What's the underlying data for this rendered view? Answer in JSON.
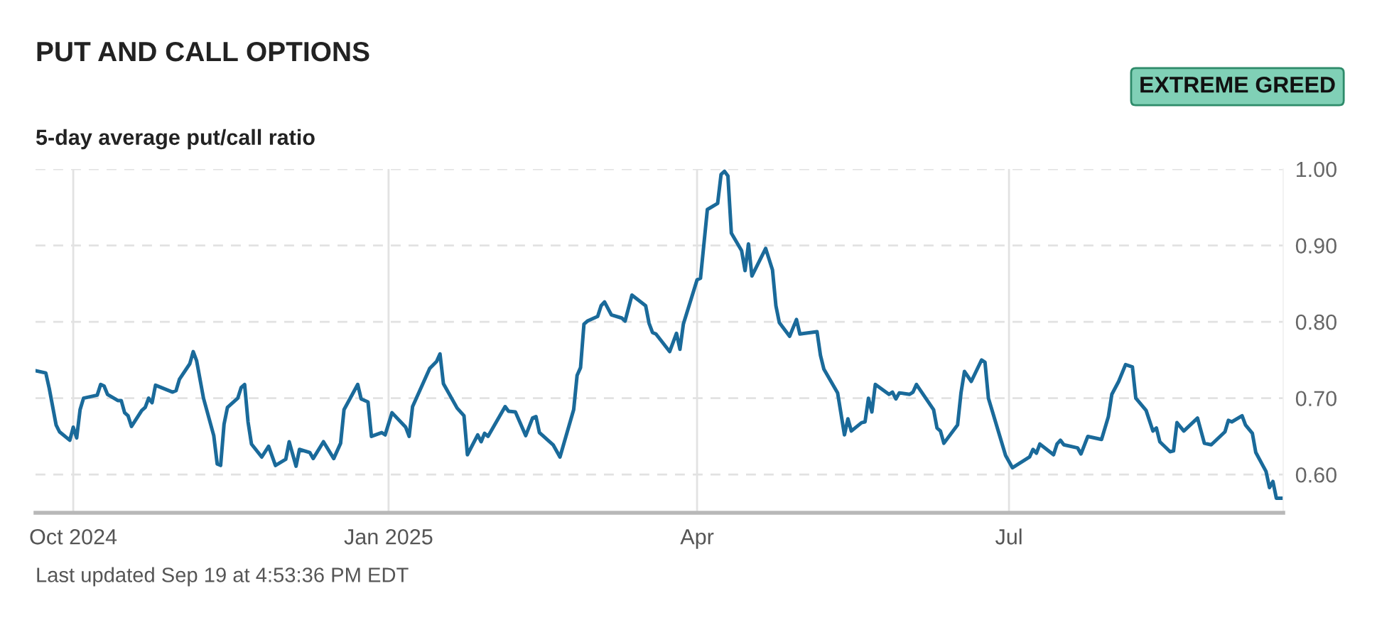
{
  "chart_data": {
    "type": "line",
    "title": "PUT AND CALL OPTIONS",
    "subtitle": "5-day average put/call ratio",
    "annotations": [
      "EXTREME GREED",
      "Last updated Sep 19 at 4:53:36 PM EDT"
    ],
    "xlim": [
      "2024-09-20",
      "2025-09-19"
    ],
    "xticks": [
      {
        "value": "2024-10-01",
        "label": "Oct 2024"
      },
      {
        "value": "2025-01-01",
        "label": "Jan 2025"
      },
      {
        "value": "2025-04-01",
        "label": "Apr"
      },
      {
        "value": "2025-07-01",
        "label": "Jul"
      }
    ],
    "ylim": [
      0.55,
      1.0
    ],
    "yticks": [
      {
        "value": 0.6,
        "label": "0.60"
      },
      {
        "value": 0.7,
        "label": "0.70"
      },
      {
        "value": 0.8,
        "label": "0.80"
      },
      {
        "value": 0.9,
        "label": "0.90"
      },
      {
        "value": 1.0,
        "label": "1.00"
      }
    ],
    "grid": true,
    "marker": "none",
    "line_style": "solid",
    "series": [
      {
        "color": "#1a6a9a",
        "x": [
          "2024-09-20",
          "2024-09-23",
          "2024-09-24",
          "2024-09-26",
          "2024-09-27",
          "2024-09-30",
          "2024-10-01",
          "2024-10-02",
          "2024-10-03",
          "2024-10-04",
          "2024-10-08",
          "2024-10-09",
          "2024-10-10",
          "2024-10-11",
          "2024-10-14",
          "2024-10-15",
          "2024-10-16",
          "2024-10-17",
          "2024-10-18",
          "2024-10-21",
          "2024-10-22",
          "2024-10-23",
          "2024-10-24",
          "2024-10-25",
          "2024-10-30",
          "2024-10-31",
          "2024-11-01",
          "2024-11-04",
          "2024-11-05",
          "2024-11-06",
          "2024-11-08",
          "2024-11-11",
          "2024-11-12",
          "2024-11-13",
          "2024-11-14",
          "2024-11-15",
          "2024-11-18",
          "2024-11-19",
          "2024-11-20",
          "2024-11-21",
          "2024-11-22",
          "2024-11-25",
          "2024-11-27",
          "2024-11-29",
          "2024-12-02",
          "2024-12-03",
          "2024-12-05",
          "2024-12-06",
          "2024-12-09",
          "2024-12-10",
          "2024-12-13",
          "2024-12-16",
          "2024-12-18",
          "2024-12-19",
          "2024-12-23",
          "2024-12-24",
          "2024-12-26",
          "2024-12-27",
          "2024-12-30",
          "2024-12-31",
          "2025-01-02",
          "2025-01-06",
          "2025-01-07",
          "2025-01-08",
          "2025-01-13",
          "2025-01-15",
          "2025-01-16",
          "2025-01-17",
          "2025-01-21",
          "2025-01-23",
          "2025-01-24",
          "2025-01-27",
          "2025-01-28",
          "2025-01-29",
          "2025-01-30",
          "2025-02-04",
          "2025-02-05",
          "2025-02-07",
          "2025-02-10",
          "2025-02-12",
          "2025-02-13",
          "2025-02-14",
          "2025-02-18",
          "2025-02-20",
          "2025-02-24",
          "2025-02-25",
          "2025-02-26",
          "2025-02-27",
          "2025-02-28",
          "2025-03-03",
          "2025-03-04",
          "2025-03-05",
          "2025-03-07",
          "2025-03-10",
          "2025-03-11",
          "2025-03-13",
          "2025-03-17",
          "2025-03-18",
          "2025-03-19",
          "2025-03-20",
          "2025-03-24",
          "2025-03-26",
          "2025-03-27",
          "2025-03-28",
          "2025-04-01",
          "2025-04-02",
          "2025-04-04",
          "2025-04-07",
          "2025-04-08",
          "2025-04-09",
          "2025-04-10",
          "2025-04-11",
          "2025-04-14",
          "2025-04-15",
          "2025-04-16",
          "2025-04-17",
          "2025-04-21",
          "2025-04-23",
          "2025-04-24",
          "2025-04-25",
          "2025-04-28",
          "2025-04-30",
          "2025-05-01",
          "2025-05-06",
          "2025-05-07",
          "2025-05-08",
          "2025-05-12",
          "2025-05-14",
          "2025-05-15",
          "2025-05-16",
          "2025-05-19",
          "2025-05-20",
          "2025-05-21",
          "2025-05-22",
          "2025-05-23",
          "2025-05-27",
          "2025-05-28",
          "2025-05-29",
          "2025-05-30",
          "2025-06-02",
          "2025-06-03",
          "2025-06-04",
          "2025-06-09",
          "2025-06-10",
          "2025-06-11",
          "2025-06-12",
          "2025-06-16",
          "2025-06-17",
          "2025-06-18",
          "2025-06-20",
          "2025-06-23",
          "2025-06-24",
          "2025-06-25",
          "2025-06-26",
          "2025-06-30",
          "2025-07-02",
          "2025-07-07",
          "2025-07-08",
          "2025-07-09",
          "2025-07-10",
          "2025-07-14",
          "2025-07-15",
          "2025-07-16",
          "2025-07-17",
          "2025-07-21",
          "2025-07-22",
          "2025-07-24",
          "2025-07-28",
          "2025-07-30",
          "2025-07-31",
          "2025-08-02",
          "2025-08-04",
          "2025-08-06",
          "2025-08-07",
          "2025-08-10",
          "2025-08-12",
          "2025-08-13",
          "2025-08-14",
          "2025-08-17",
          "2025-08-18",
          "2025-08-19",
          "2025-08-21",
          "2025-08-25",
          "2025-08-27",
          "2025-08-29",
          "2025-09-02",
          "2025-09-03",
          "2025-09-04",
          "2025-09-07",
          "2025-09-08",
          "2025-09-10",
          "2025-09-11",
          "2025-09-14",
          "2025-09-15",
          "2025-09-16",
          "2025-09-17",
          "2025-09-19"
        ],
        "values": [
          0.736,
          0.733,
          0.713,
          0.665,
          0.656,
          0.645,
          0.662,
          0.648,
          0.685,
          0.7,
          0.704,
          0.718,
          0.716,
          0.705,
          0.697,
          0.697,
          0.681,
          0.677,
          0.663,
          0.684,
          0.688,
          0.7,
          0.694,
          0.717,
          0.708,
          0.71,
          0.725,
          0.745,
          0.761,
          0.749,
          0.7,
          0.651,
          0.614,
          0.612,
          0.666,
          0.688,
          0.7,
          0.714,
          0.718,
          0.669,
          0.64,
          0.623,
          0.637,
          0.612,
          0.62,
          0.643,
          0.611,
          0.633,
          0.629,
          0.621,
          0.643,
          0.621,
          0.641,
          0.685,
          0.718,
          0.699,
          0.695,
          0.65,
          0.655,
          0.652,
          0.681,
          0.662,
          0.65,
          0.689,
          0.739,
          0.748,
          0.758,
          0.719,
          0.687,
          0.677,
          0.626,
          0.652,
          0.643,
          0.654,
          0.65,
          0.689,
          0.683,
          0.682,
          0.651,
          0.674,
          0.676,
          0.655,
          0.639,
          0.623,
          0.685,
          0.73,
          0.74,
          0.797,
          0.801,
          0.807,
          0.821,
          0.826,
          0.809,
          0.805,
          0.801,
          0.835,
          0.821,
          0.798,
          0.786,
          0.784,
          0.761,
          0.785,
          0.764,
          0.797,
          0.855,
          0.857,
          0.947,
          0.955,
          0.993,
          0.997,
          0.991,
          0.916,
          0.893,
          0.867,
          0.902,
          0.86,
          0.896,
          0.868,
          0.821,
          0.799,
          0.781,
          0.803,
          0.784,
          0.787,
          0.756,
          0.738,
          0.707,
          0.652,
          0.673,
          0.657,
          0.668,
          0.669,
          0.7,
          0.682,
          0.718,
          0.705,
          0.708,
          0.699,
          0.707,
          0.705,
          0.708,
          0.718,
          0.685,
          0.661,
          0.657,
          0.641,
          0.665,
          0.707,
          0.735,
          0.722,
          0.75,
          0.747,
          0.7,
          0.685,
          0.625,
          0.609,
          0.623,
          0.633,
          0.628,
          0.64,
          0.626,
          0.64,
          0.645,
          0.639,
          0.635,
          0.627,
          0.65,
          0.646,
          0.676,
          0.705,
          0.722,
          0.744,
          0.741,
          0.7,
          0.684,
          0.657,
          0.661,
          0.643,
          0.63,
          0.631,
          0.668,
          0.657,
          0.674,
          0.641,
          0.639,
          0.656,
          0.671,
          0.669,
          0.677,
          0.665,
          0.654,
          0.629,
          0.604,
          0.583,
          0.591,
          0.569,
          0.569
        ]
      }
    ]
  }
}
